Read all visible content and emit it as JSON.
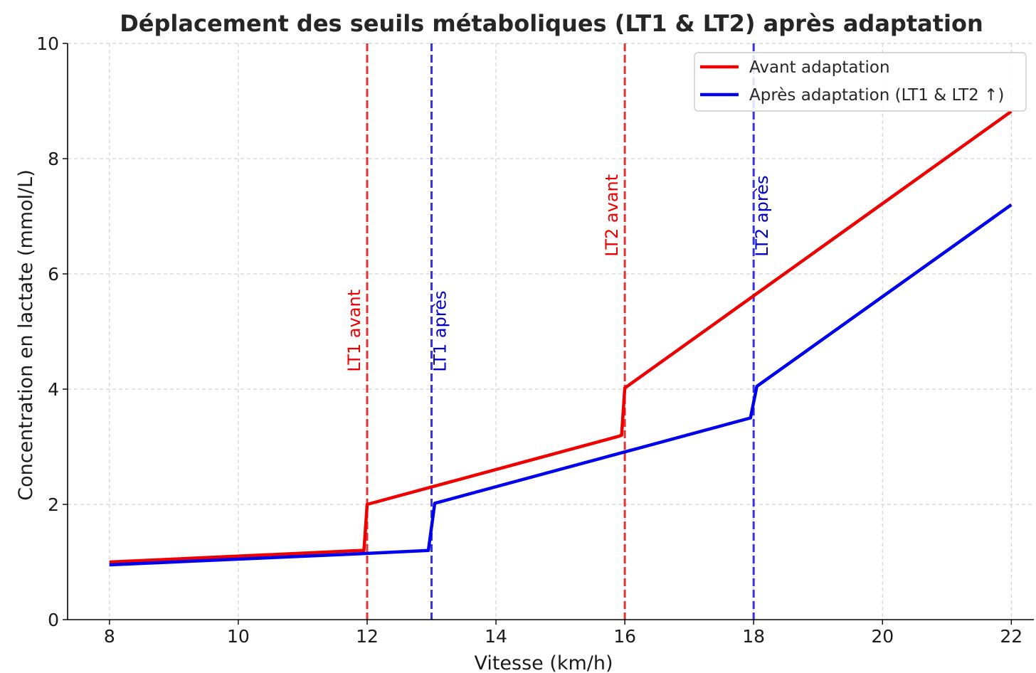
{
  "chart_data": {
    "type": "line",
    "title": "Déplacement des seuils métaboliques (LT1 & LT2) après adaptation",
    "xlabel": "Vitesse (km/h)",
    "ylabel": "Concentration en lactate (mmol/L)",
    "xlim": [
      7.35,
      22.35
    ],
    "ylim": [
      0,
      10
    ],
    "xticks": [
      "8",
      "10",
      "12",
      "14",
      "16",
      "18",
      "20",
      "22"
    ],
    "yticks": [
      "0",
      "2",
      "4",
      "6",
      "8",
      "10"
    ],
    "grid": true,
    "legend_position": "top-right",
    "series": [
      {
        "name": "Avant adaptation",
        "color": "#ee0000",
        "points": [
          [
            8,
            1.0
          ],
          [
            11.9,
            1.2
          ],
          [
            11.95,
            1.2
          ],
          [
            12.0,
            2.0
          ],
          [
            15.9,
            3.18
          ],
          [
            15.95,
            3.2
          ],
          [
            16.0,
            4.02
          ],
          [
            22.0,
            8.82
          ]
        ]
      },
      {
        "name": "Après adaptation (LT1 & LT2 ↑)",
        "color": "#0000ee",
        "points": [
          [
            8,
            0.95
          ],
          [
            12.0,
            1.15
          ],
          [
            12.95,
            1.2
          ],
          [
            13.05,
            2.02
          ],
          [
            17.95,
            3.5
          ],
          [
            18.05,
            4.05
          ],
          [
            22.0,
            7.2
          ]
        ]
      }
    ],
    "threshold_lines": [
      {
        "x": 12,
        "label": "LT1 avant",
        "color": "#e53333"
      },
      {
        "x": 13,
        "label": "LT1 après",
        "color": "#3333e5"
      },
      {
        "x": 16,
        "label": "LT2 avant",
        "color": "#e53333"
      },
      {
        "x": 18,
        "label": "LT2 après",
        "color": "#3333e5"
      }
    ],
    "threshold_label_text_colors": {
      "avant": "#ee0000",
      "apres": "#0000cc"
    }
  }
}
